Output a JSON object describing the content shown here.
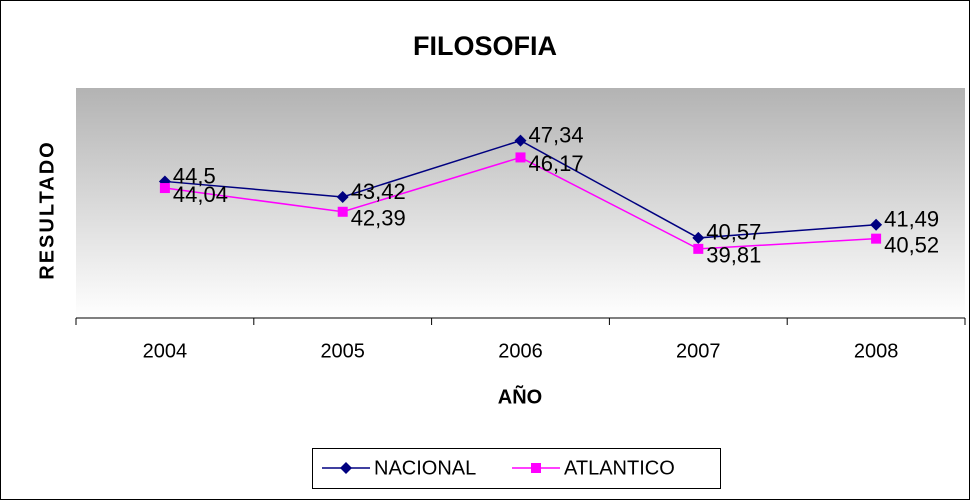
{
  "chart_data": {
    "type": "line",
    "title": "FILOSOFIA",
    "x_label": "AÑO",
    "y_label": "RESULTADO",
    "categories": [
      "2004",
      "2005",
      "2006",
      "2007",
      "2008"
    ],
    "series": [
      {
        "name": "NACIONAL",
        "color": "#000080",
        "marker": "diamond",
        "values": [
          44.5,
          43.42,
          47.34,
          40.57,
          41.49
        ],
        "value_labels": [
          "44,5",
          "43,42",
          "47,34",
          "40,57",
          "41,49"
        ]
      },
      {
        "name": "ATLANTICO",
        "color": "#ff00ff",
        "marker": "square",
        "values": [
          44.04,
          42.39,
          46.17,
          39.81,
          40.52
        ],
        "value_labels": [
          "44,04",
          "42,39",
          "46,17",
          "39,81",
          "40,52"
        ]
      }
    ],
    "ylim": [
      35,
      51
    ],
    "legend": "bottom"
  }
}
